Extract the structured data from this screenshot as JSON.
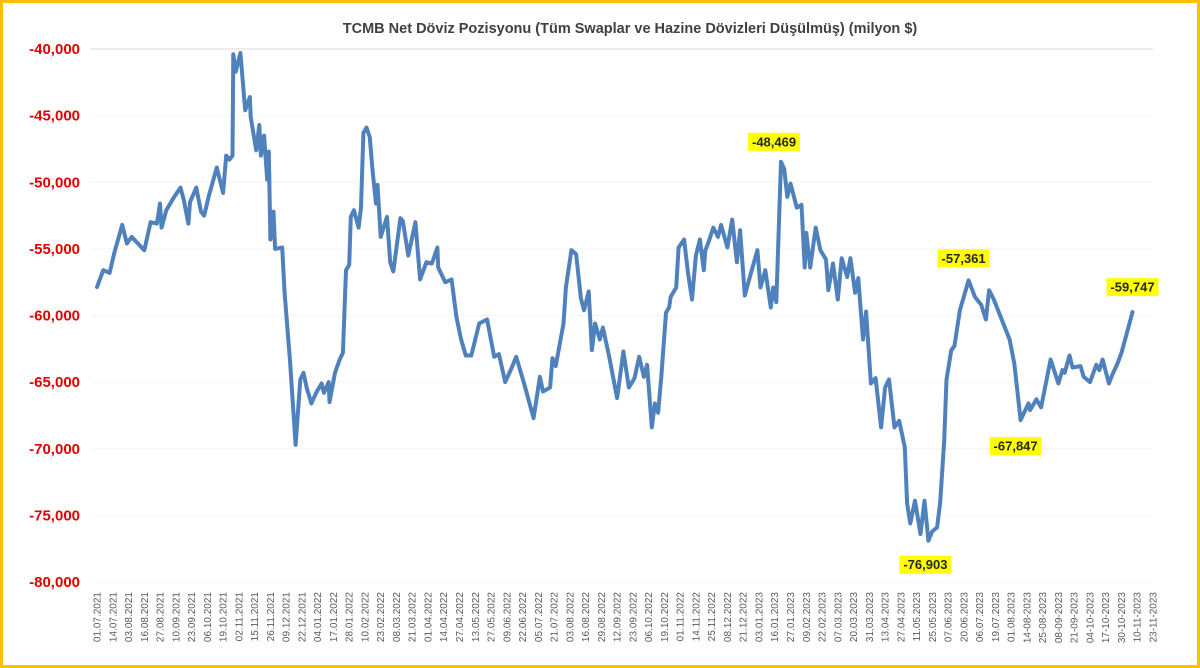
{
  "chart_data": {
    "type": "line",
    "title": "TCMB Net Döviz Pozisyonu (Tüm Swaplar ve Hazine Dövizleri Düşülmüş) (milyon $)",
    "xlabel": "",
    "ylabel": "",
    "ylim": [
      -80000,
      -40000
    ],
    "yticks": [
      -40000,
      -45000,
      -50000,
      -55000,
      -60000,
      -65000,
      -70000,
      -75000,
      -80000
    ],
    "ytick_labels": [
      "-40,000",
      "-45,000",
      "-50,000",
      "-55,000",
      "-60,000",
      "-65,000",
      "-70,000",
      "-75,000",
      "-80,000"
    ],
    "grid": true,
    "legend": "none",
    "colors": {
      "line": "#4F81BD",
      "ytick": "#E00000",
      "annotation_bg": "#FFFF00",
      "border": "#FFC000"
    },
    "xtick_labels": [
      "01.07.2021",
      "14.07.2021",
      "03.08.2021",
      "16.08.2021",
      "27.08.2021",
      "10.09.2021",
      "23.09.2021",
      "06.10.2021",
      "19.10.2021",
      "02.11.2021",
      "15.11.2021",
      "26.11.2021",
      "09.12.2021",
      "22.12.2021",
      "04.01.2022",
      "17.01.2022",
      "28.01.2022",
      "10.02.2022",
      "23.02.2022",
      "08.03.2022",
      "21.03.2022",
      "01.04.2022",
      "14.04.2022",
      "27.04.2022",
      "13.05.2022",
      "27.05.2022",
      "09.06.2022",
      "22.06.2022",
      "05.07.2022",
      "21.07.2022",
      "03.08.2022",
      "16.08.2022",
      "29.08.2022",
      "12.09.2022",
      "23.09.2022",
      "06.10.2022",
      "19.10.2022",
      "01.11.2022",
      "14.11.2022",
      "25.11.2022",
      "08.12.2022",
      "21.12.2022",
      "03.01.2023",
      "16.01.2023",
      "27.01.2023",
      "09.02.2023",
      "22.02.2023",
      "07.03.2023",
      "20.03.2023",
      "31.03.2023",
      "13.04.2023",
      "27.04.2023",
      "11.05.2023",
      "25.05.2023",
      "07.06.2023",
      "20.06.2023",
      "06.07.2023",
      "19.07.2023",
      "01.08.2023",
      "14-08-2023",
      "25-08-2023",
      "08-09-2023",
      "21-09-2023",
      "04-10-2023",
      "17-10-2023",
      "30-10-2023",
      "10-11-2023",
      "23-11-2023"
    ],
    "x_unit": "tick index (0 = 01.07.2021)",
    "series": [
      {
        "name": "Net Döviz Pozisyonu",
        "points": [
          [
            0,
            -57860
          ],
          [
            0.4,
            -56600
          ],
          [
            0.8,
            -56800
          ],
          [
            1.1,
            -55300
          ],
          [
            1.6,
            -53200
          ],
          [
            1.9,
            -54600
          ],
          [
            2.2,
            -54100
          ],
          [
            3.0,
            -55100
          ],
          [
            3.4,
            -53000
          ],
          [
            3.8,
            -53100
          ],
          [
            4.0,
            -51600
          ],
          [
            4.1,
            -53400
          ],
          [
            4.4,
            -52100
          ],
          [
            4.9,
            -51100
          ],
          [
            5.3,
            -50400
          ],
          [
            5.5,
            -51300
          ],
          [
            5.8,
            -53100
          ],
          [
            5.9,
            -51500
          ],
          [
            6.3,
            -50400
          ],
          [
            6.6,
            -52200
          ],
          [
            6.8,
            -52500
          ],
          [
            7.1,
            -51000
          ],
          [
            7.6,
            -48900
          ],
          [
            8.0,
            -50800
          ],
          [
            8.2,
            -48000
          ],
          [
            8.4,
            -48300
          ],
          [
            8.6,
            -48000
          ],
          [
            8.65,
            -40400
          ],
          [
            8.8,
            -41700
          ],
          [
            9.1,
            -40300
          ],
          [
            9.4,
            -44600
          ],
          [
            9.7,
            -43600
          ],
          [
            9.75,
            -45100
          ],
          [
            10.1,
            -47600
          ],
          [
            10.3,
            -45700
          ],
          [
            10.4,
            -48000
          ],
          [
            10.6,
            -46500
          ],
          [
            10.8,
            -49800
          ],
          [
            10.9,
            -47700
          ],
          [
            11.0,
            -54300
          ],
          [
            11.2,
            -52200
          ],
          [
            11.3,
            -55000
          ],
          [
            11.75,
            -54900
          ],
          [
            11.9,
            -58300
          ],
          [
            12.25,
            -63500
          ],
          [
            12.6,
            -69700
          ],
          [
            12.9,
            -64800
          ],
          [
            13.1,
            -64300
          ],
          [
            13.3,
            -65400
          ],
          [
            13.6,
            -66600
          ],
          [
            13.9,
            -65800
          ],
          [
            14.25,
            -65100
          ],
          [
            14.4,
            -65800
          ],
          [
            14.7,
            -65000
          ],
          [
            14.75,
            -66500
          ],
          [
            15.1,
            -64300
          ],
          [
            15.4,
            -63300
          ],
          [
            15.6,
            -62800
          ],
          [
            15.8,
            -56600
          ],
          [
            16.0,
            -56200
          ],
          [
            16.1,
            -52600
          ],
          [
            16.3,
            -52100
          ],
          [
            16.6,
            -53400
          ],
          [
            16.75,
            -51900
          ],
          [
            16.9,
            -46300
          ],
          [
            17.1,
            -45900
          ],
          [
            17.3,
            -46600
          ],
          [
            17.5,
            -49300
          ],
          [
            17.7,
            -51600
          ],
          [
            17.8,
            -50200
          ],
          [
            18.0,
            -54100
          ],
          [
            18.4,
            -52600
          ],
          [
            18.6,
            -56000
          ],
          [
            18.8,
            -56700
          ],
          [
            19.25,
            -52700
          ],
          [
            19.4,
            -52900
          ],
          [
            19.75,
            -55500
          ],
          [
            20.2,
            -53000
          ],
          [
            20.5,
            -57300
          ],
          [
            20.9,
            -56000
          ],
          [
            21.25,
            -56100
          ],
          [
            21.6,
            -54900
          ],
          [
            21.65,
            -56400
          ],
          [
            22.1,
            -57500
          ],
          [
            22.5,
            -57300
          ],
          [
            22.8,
            -60100
          ],
          [
            23.1,
            -61800
          ],
          [
            23.4,
            -63000
          ],
          [
            23.75,
            -63000
          ],
          [
            24.25,
            -60600
          ],
          [
            24.75,
            -60300
          ],
          [
            25.2,
            -63100
          ],
          [
            25.5,
            -62900
          ],
          [
            25.9,
            -65000
          ],
          [
            26.25,
            -64100
          ],
          [
            26.6,
            -63100
          ],
          [
            27.1,
            -65100
          ],
          [
            27.7,
            -67700
          ],
          [
            28.1,
            -64600
          ],
          [
            28.3,
            -65700
          ],
          [
            28.75,
            -65400
          ],
          [
            28.9,
            -63200
          ],
          [
            29.1,
            -63800
          ],
          [
            29.6,
            -60600
          ],
          [
            29.75,
            -57900
          ],
          [
            30.1,
            -55100
          ],
          [
            30.4,
            -55400
          ],
          [
            30.7,
            -58700
          ],
          [
            30.9,
            -59600
          ],
          [
            31.2,
            -58200
          ],
          [
            31.4,
            -62600
          ],
          [
            31.6,
            -60600
          ],
          [
            31.9,
            -61800
          ],
          [
            32.1,
            -60900
          ],
          [
            32.5,
            -63100
          ],
          [
            33.0,
            -66200
          ],
          [
            33.4,
            -62700
          ],
          [
            33.75,
            -65400
          ],
          [
            34.1,
            -64700
          ],
          [
            34.4,
            -63100
          ],
          [
            34.7,
            -64600
          ],
          [
            34.9,
            -63700
          ],
          [
            35.2,
            -68400
          ],
          [
            35.4,
            -66600
          ],
          [
            35.6,
            -67300
          ],
          [
            35.8,
            -64600
          ],
          [
            36.1,
            -59800
          ],
          [
            36.3,
            -59400
          ],
          [
            36.4,
            -58600
          ],
          [
            36.75,
            -57900
          ],
          [
            36.9,
            -54900
          ],
          [
            37.25,
            -54300
          ],
          [
            37.5,
            -56800
          ],
          [
            37.75,
            -58800
          ],
          [
            38.0,
            -55500
          ],
          [
            38.25,
            -54300
          ],
          [
            38.5,
            -56600
          ],
          [
            38.6,
            -55100
          ],
          [
            38.8,
            -54500
          ],
          [
            39.1,
            -53400
          ],
          [
            39.4,
            -54100
          ],
          [
            39.6,
            -53200
          ],
          [
            40.0,
            -54900
          ],
          [
            40.3,
            -52800
          ],
          [
            40.6,
            -56000
          ],
          [
            40.8,
            -53600
          ],
          [
            41.1,
            -58500
          ],
          [
            41.4,
            -57200
          ],
          [
            41.9,
            -55100
          ],
          [
            42.1,
            -57900
          ],
          [
            42.4,
            -56600
          ],
          [
            42.75,
            -59400
          ],
          [
            42.9,
            -57900
          ],
          [
            43.1,
            -59000
          ],
          [
            43.4,
            -48469
          ],
          [
            43.6,
            -49000
          ],
          [
            43.8,
            -51100
          ],
          [
            44.0,
            -50100
          ],
          [
            44.4,
            -51900
          ],
          [
            44.7,
            -51700
          ],
          [
            44.9,
            -56400
          ],
          [
            45.0,
            -53800
          ],
          [
            45.25,
            -56400
          ],
          [
            45.6,
            -53400
          ],
          [
            45.9,
            -55100
          ],
          [
            46.25,
            -55800
          ],
          [
            46.4,
            -58100
          ],
          [
            46.7,
            -56100
          ],
          [
            47.0,
            -58800
          ],
          [
            47.25,
            -55700
          ],
          [
            47.6,
            -57100
          ],
          [
            47.8,
            -55700
          ],
          [
            48.1,
            -58300
          ],
          [
            48.3,
            -57200
          ],
          [
            48.6,
            -61800
          ],
          [
            48.8,
            -59700
          ],
          [
            49.1,
            -65100
          ],
          [
            49.4,
            -64700
          ],
          [
            49.75,
            -68400
          ],
          [
            50.0,
            -65400
          ],
          [
            50.25,
            -64800
          ],
          [
            50.6,
            -68400
          ],
          [
            50.9,
            -67900
          ],
          [
            51.25,
            -69900
          ],
          [
            51.4,
            -74100
          ],
          [
            51.6,
            -75600
          ],
          [
            51.9,
            -73900
          ],
          [
            52.25,
            -76400
          ],
          [
            52.5,
            -73900
          ],
          [
            52.75,
            -76903
          ],
          [
            53.0,
            -76200
          ],
          [
            53.3,
            -75900
          ],
          [
            53.5,
            -74000
          ],
          [
            53.75,
            -69400
          ],
          [
            53.9,
            -64800
          ],
          [
            54.2,
            -62600
          ],
          [
            54.4,
            -62300
          ],
          [
            54.75,
            -59600
          ],
          [
            55.3,
            -57361
          ],
          [
            55.7,
            -58600
          ],
          [
            56.1,
            -59200
          ],
          [
            56.4,
            -60300
          ],
          [
            56.6,
            -58100
          ],
          [
            56.9,
            -58800
          ],
          [
            57.4,
            -60300
          ],
          [
            57.9,
            -61800
          ],
          [
            58.2,
            -63600
          ],
          [
            58.6,
            -67847
          ],
          [
            59.1,
            -66600
          ],
          [
            59.2,
            -67100
          ],
          [
            59.6,
            -66300
          ],
          [
            59.9,
            -66900
          ],
          [
            60.5,
            -63300
          ],
          [
            61.0,
            -65100
          ],
          [
            61.25,
            -64100
          ],
          [
            61.4,
            -64300
          ],
          [
            61.7,
            -63000
          ],
          [
            61.9,
            -63900
          ],
          [
            62.4,
            -63800
          ],
          [
            62.6,
            -64600
          ],
          [
            63.0,
            -65000
          ],
          [
            63.4,
            -63700
          ],
          [
            63.6,
            -64100
          ],
          [
            63.8,
            -63300
          ],
          [
            64.2,
            -65100
          ],
          [
            64.4,
            -64500
          ],
          [
            64.75,
            -63600
          ],
          [
            65.0,
            -62800
          ],
          [
            65.3,
            -61500
          ],
          [
            65.7,
            -59747
          ]
        ]
      }
    ],
    "annotations": [
      {
        "label": "-48,469",
        "x": 43.4,
        "value": -48469
      },
      {
        "label": "-57,361",
        "x": 55.3,
        "value": -57361
      },
      {
        "label": "-59,747",
        "x": 65.7,
        "value": -59747
      },
      {
        "label": "-67,847",
        "x": 58.6,
        "value": -67847
      },
      {
        "label": "-76,903",
        "x": 52.75,
        "value": -76903
      }
    ]
  }
}
